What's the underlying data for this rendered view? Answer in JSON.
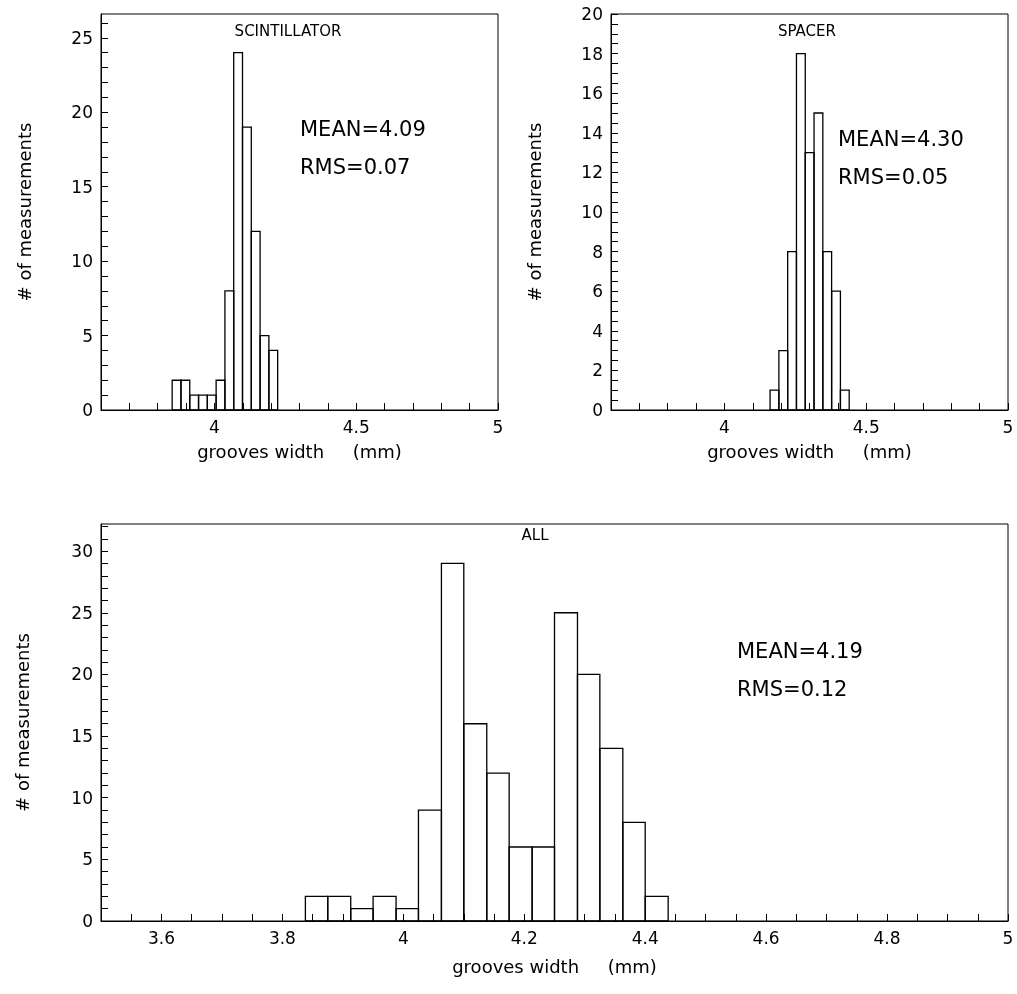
{
  "chart_data": [
    {
      "type": "histogram",
      "title": "SCINTILLATOR",
      "xlabel": "grooves width     (mm)",
      "ylabel": "# of measurements",
      "color": "#000000",
      "bins": [
        3.851,
        3.882,
        3.913,
        3.944,
        3.975,
        4.006,
        4.037,
        4.068,
        4.099,
        4.13,
        4.161,
        4.192,
        4.223
      ],
      "values": [
        2,
        2,
        1,
        1,
        1,
        2,
        8,
        24,
        19,
        12,
        5,
        4
      ],
      "annotations": [
        "MEAN=4.09",
        "RMS=0.07"
      ],
      "xlim": [
        3.6,
        5
      ],
      "xticks": [
        {
          "value": 3.7,
          "label": null
        },
        {
          "value": 3.8,
          "label": null
        },
        {
          "value": 3.9,
          "label": null
        },
        4,
        {
          "value": 4.1,
          "label": null
        },
        {
          "value": 4.2,
          "label": null
        },
        {
          "value": 4.3,
          "label": null
        },
        {
          "value": 4.4,
          "label": null
        },
        4.5,
        {
          "value": 4.6,
          "label": null
        },
        {
          "value": 4.7,
          "label": null
        },
        {
          "value": 4.8,
          "label": null
        },
        {
          "value": 4.9,
          "label": null
        },
        5
      ],
      "ylim": [
        0,
        26.6
      ],
      "yticks": [
        0,
        {
          "value": 1,
          "label": null
        },
        {
          "value": 2,
          "label": null
        },
        {
          "value": 3,
          "label": null
        },
        {
          "value": 4,
          "label": null
        },
        5,
        {
          "value": 6,
          "label": null
        },
        {
          "value": 7,
          "label": null
        },
        {
          "value": 8,
          "label": null
        },
        {
          "value": 9,
          "label": null
        },
        10,
        {
          "value": 11,
          "label": null
        },
        {
          "value": 12,
          "label": null
        },
        {
          "value": 13,
          "label": null
        },
        {
          "value": 14,
          "label": null
        },
        15,
        {
          "value": 16,
          "label": null
        },
        {
          "value": 17,
          "label": null
        },
        {
          "value": 18,
          "label": null
        },
        {
          "value": 19,
          "label": null
        },
        20,
        {
          "value": 21,
          "label": null
        },
        {
          "value": 22,
          "label": null
        },
        {
          "value": 23,
          "label": null
        },
        {
          "value": 24,
          "label": null
        },
        25,
        {
          "value": 26,
          "label": null
        }
      ]
    },
    {
      "type": "histogram",
      "title": "SPACER",
      "xlabel": "grooves width     (mm)",
      "ylabel": "# of measurements",
      "color": "#000000",
      "bins": [
        4.161,
        4.192,
        4.223,
        4.254,
        4.285,
        4.316,
        4.347,
        4.378,
        4.409,
        4.44
      ],
      "values": [
        1,
        3,
        8,
        18,
        13,
        15,
        8,
        6,
        1
      ],
      "annotations": [
        "MEAN=4.30",
        "RMS=0.05"
      ],
      "xlim": [
        3.6,
        5
      ],
      "xticks": [
        {
          "value": 3.7,
          "label": null
        },
        {
          "value": 3.8,
          "label": null
        },
        {
          "value": 3.9,
          "label": null
        },
        4,
        {
          "value": 4.1,
          "label": null
        },
        {
          "value": 4.2,
          "label": null
        },
        {
          "value": 4.3,
          "label": null
        },
        {
          "value": 4.4,
          "label": null
        },
        4.5,
        {
          "value": 4.6,
          "label": null
        },
        {
          "value": 4.7,
          "label": null
        },
        {
          "value": 4.8,
          "label": null
        },
        {
          "value": 4.9,
          "label": null
        },
        5
      ],
      "ylim": [
        0,
        20
      ],
      "yticks": [
        0,
        {
          "value": 0.5,
          "label": null
        },
        {
          "value": 1,
          "label": null
        },
        {
          "value": 1.5,
          "label": null
        },
        2,
        {
          "value": 2.5,
          "label": null
        },
        {
          "value": 3,
          "label": null
        },
        {
          "value": 3.5,
          "label": null
        },
        4,
        {
          "value": 4.5,
          "label": null
        },
        {
          "value": 5,
          "label": null
        },
        {
          "value": 5.5,
          "label": null
        },
        6,
        {
          "value": 6.5,
          "label": null
        },
        {
          "value": 7,
          "label": null
        },
        {
          "value": 7.5,
          "label": null
        },
        8,
        {
          "value": 8.5,
          "label": null
        },
        {
          "value": 9,
          "label": null
        },
        {
          "value": 9.5,
          "label": null
        },
        10,
        {
          "value": 10.5,
          "label": null
        },
        {
          "value": 11,
          "label": null
        },
        {
          "value": 11.5,
          "label": null
        },
        12,
        {
          "value": 12.5,
          "label": null
        },
        {
          "value": 13,
          "label": null
        },
        {
          "value": 13.5,
          "label": null
        },
        14,
        {
          "value": 14.5,
          "label": null
        },
        {
          "value": 15,
          "label": null
        },
        {
          "value": 15.5,
          "label": null
        },
        16,
        {
          "value": 16.5,
          "label": null
        },
        {
          "value": 17,
          "label": null
        },
        {
          "value": 17.5,
          "label": null
        },
        18,
        {
          "value": 18.5,
          "label": null
        },
        {
          "value": 19,
          "label": null
        },
        {
          "value": 19.5,
          "label": null
        },
        20
      ]
    },
    {
      "type": "histogram",
      "title": "ALL",
      "xlabel": "grooves width     (mm)",
      "ylabel": "# of measurements",
      "color": "#000000",
      "bins": [
        3.838,
        3.875,
        3.913,
        3.95,
        3.988,
        4.025,
        4.063,
        4.1,
        4.138,
        4.175,
        4.213,
        4.25,
        4.288,
        4.325,
        4.363,
        4.4,
        4.438
      ],
      "values": [
        2,
        2,
        1,
        2,
        1,
        9,
        29,
        16,
        12,
        6,
        6,
        25,
        20,
        14,
        8,
        2
      ],
      "annotations": [
        "MEAN=4.19",
        "RMS=0.12"
      ],
      "xlim": [
        3.5,
        5
      ],
      "xticks": [
        {
          "value": 3.55,
          "label": null
        },
        3.6,
        {
          "value": 3.65,
          "label": null
        },
        {
          "value": 3.7,
          "label": null
        },
        {
          "value": 3.75,
          "label": null
        },
        3.8,
        {
          "value": 3.85,
          "label": null
        },
        {
          "value": 3.9,
          "label": null
        },
        {
          "value": 3.95,
          "label": null
        },
        4,
        {
          "value": 4.05,
          "label": null
        },
        {
          "value": 4.1,
          "label": null
        },
        {
          "value": 4.15,
          "label": null
        },
        4.2,
        {
          "value": 4.25,
          "label": null
        },
        {
          "value": 4.3,
          "label": null
        },
        {
          "value": 4.35,
          "label": null
        },
        4.4,
        {
          "value": 4.45,
          "label": null
        },
        {
          "value": 4.5,
          "label": null
        },
        {
          "value": 4.55,
          "label": null
        },
        4.6,
        {
          "value": 4.65,
          "label": null
        },
        {
          "value": 4.7,
          "label": null
        },
        {
          "value": 4.75,
          "label": null
        },
        4.8,
        {
          "value": 4.85,
          "label": null
        },
        {
          "value": 4.9,
          "label": null
        },
        {
          "value": 4.95,
          "label": null
        },
        5
      ],
      "ylim": [
        0,
        32.2
      ],
      "yticks": [
        0,
        {
          "value": 1,
          "label": null
        },
        {
          "value": 2,
          "label": null
        },
        {
          "value": 3,
          "label": null
        },
        {
          "value": 4,
          "label": null
        },
        5,
        {
          "value": 6,
          "label": null
        },
        {
          "value": 7,
          "label": null
        },
        {
          "value": 8,
          "label": null
        },
        {
          "value": 9,
          "label": null
        },
        10,
        {
          "value": 11,
          "label": null
        },
        {
          "value": 12,
          "label": null
        },
        {
          "value": 13,
          "label": null
        },
        {
          "value": 14,
          "label": null
        },
        15,
        {
          "value": 16,
          "label": null
        },
        {
          "value": 17,
          "label": null
        },
        {
          "value": 18,
          "label": null
        },
        {
          "value": 19,
          "label": null
        },
        20,
        {
          "value": 21,
          "label": null
        },
        {
          "value": 22,
          "label": null
        },
        {
          "value": 23,
          "label": null
        },
        {
          "value": 24,
          "label": null
        },
        25,
        {
          "value": 26,
          "label": null
        },
        {
          "value": 27,
          "label": null
        },
        {
          "value": 28,
          "label": null
        },
        {
          "value": 29,
          "label": null
        },
        30,
        {
          "value": 31,
          "label": null
        },
        {
          "value": 32,
          "label": null
        }
      ]
    }
  ]
}
